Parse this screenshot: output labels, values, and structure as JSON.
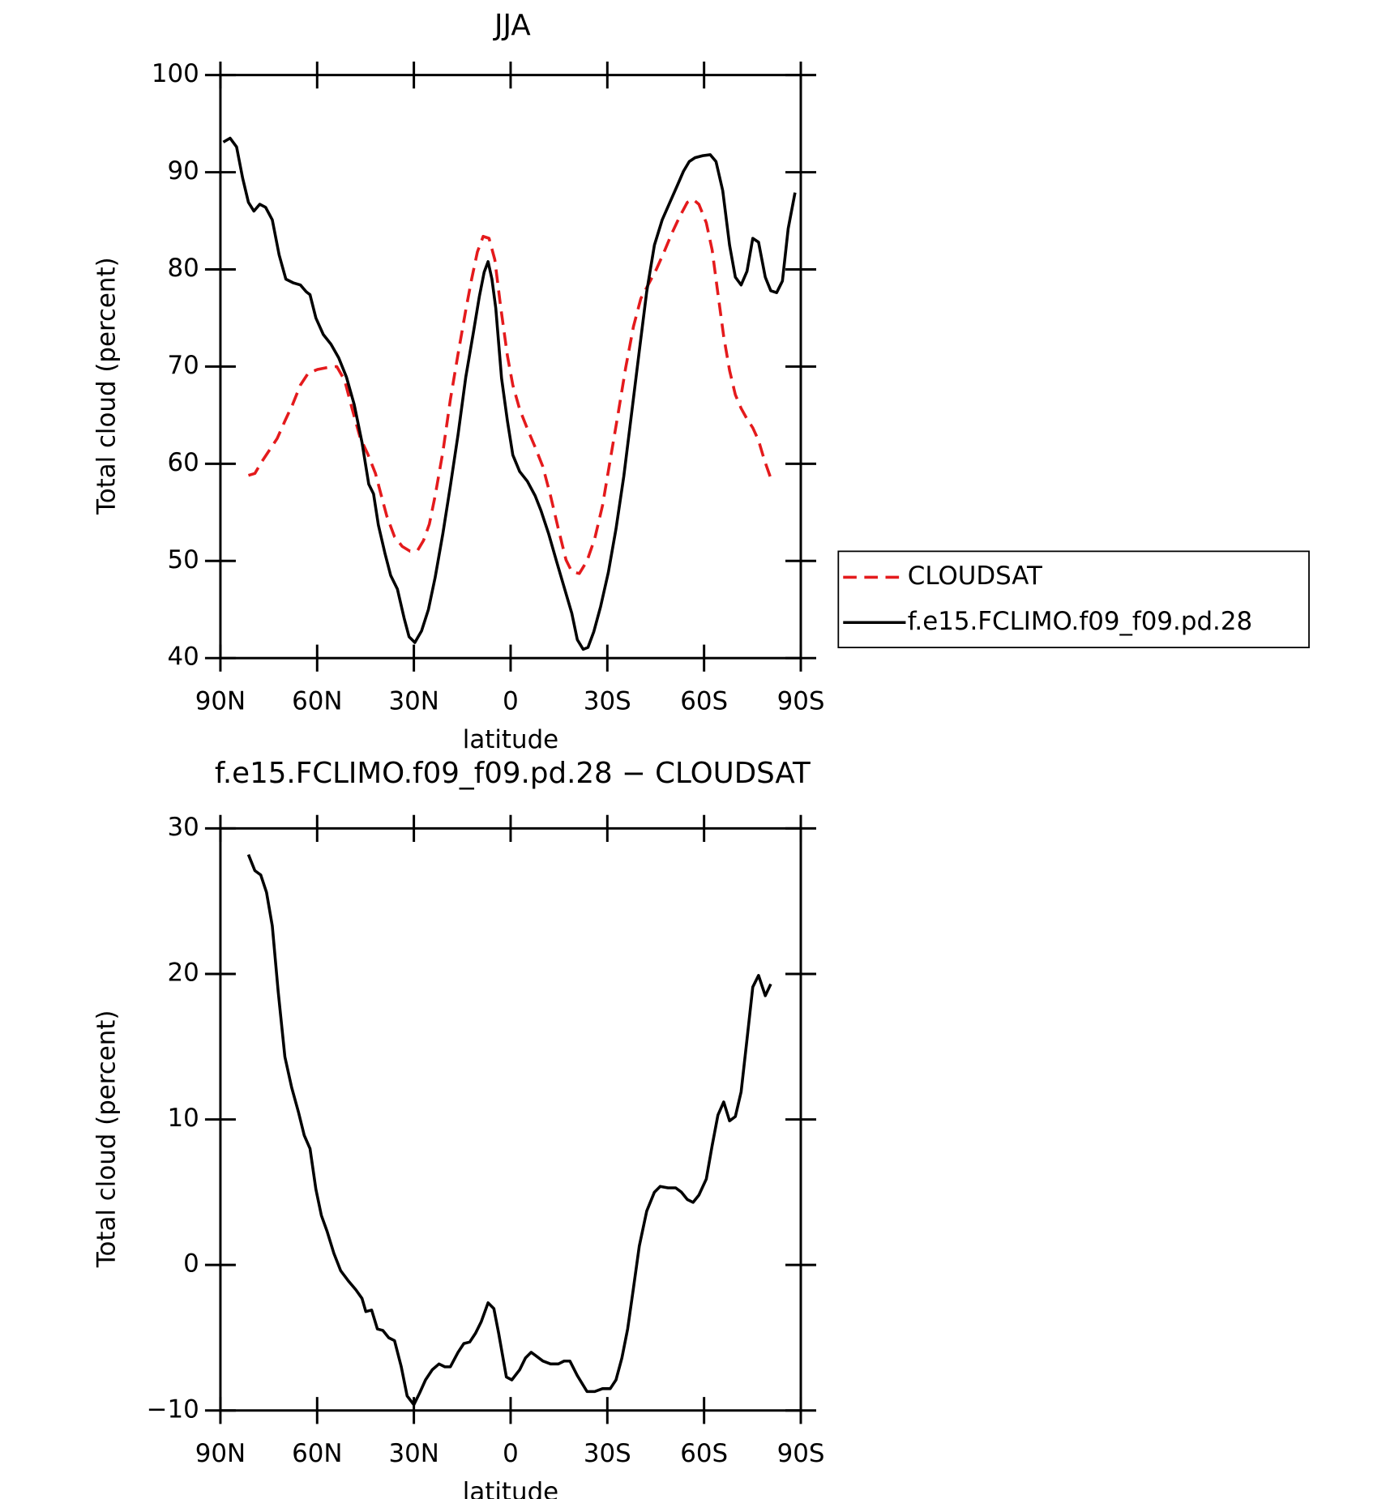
{
  "chart_data": [
    {
      "type": "line",
      "title": "JJA",
      "xlabel": "latitude",
      "ylabel": "Total cloud (percent)",
      "xlim": [
        90,
        -90
      ],
      "ylim": [
        40,
        100
      ],
      "xticks": [
        {
          "value": 90,
          "label": "90N"
        },
        {
          "value": 60,
          "label": "60N"
        },
        {
          "value": 30,
          "label": "30N"
        },
        0,
        {
          "value": -30,
          "label": "30S"
        },
        {
          "value": -60,
          "label": "60S"
        },
        {
          "value": -90,
          "label": "90S"
        }
      ],
      "yticks": [
        40,
        50,
        60,
        70,
        80,
        90,
        100
      ],
      "legend": "right",
      "series": [
        {
          "name": "CLOUDSAT",
          "color": "#e41a1c",
          "line_style": "dashed",
          "x": [
            81.3,
            79.3,
            77.2,
            74.8,
            72.4,
            70,
            67.6,
            65.2,
            62.8,
            59.9,
            56.9,
            53.9,
            51.5,
            49.1,
            46.7,
            44.3,
            41.9,
            40.1,
            38.4,
            36,
            33.6,
            31.2,
            28.8,
            27,
            25.2,
            23.4,
            21,
            18.7,
            16.3,
            13.9,
            12.1,
            10.3,
            8.5,
            6.7,
            4.9,
            3.1,
            1,
            -0.7,
            -2.8,
            -5.2,
            -7.6,
            -10,
            -12.4,
            -14.8,
            -17.2,
            -19,
            -21.3,
            -23.7,
            -26.1,
            -28.5,
            -30.9,
            -33.3,
            -35.7,
            -38.1,
            -40.4,
            -42.8,
            -45.2,
            -47.6,
            -50,
            -52.4,
            -54.8,
            -56.6,
            -58.4,
            -60.7,
            -62.5,
            -64.3,
            -66.1,
            -67.9,
            -69.7,
            -71.5,
            -73.3,
            -75.1,
            -76.9,
            -78.7,
            -80.7
          ],
          "values": [
            58.8,
            59,
            60.2,
            61.4,
            62.6,
            64.4,
            66.1,
            68.1,
            69.3,
            69.7,
            69.9,
            70,
            68.6,
            65.6,
            62.7,
            61,
            59,
            56.7,
            54.6,
            52.5,
            51.5,
            51,
            51.1,
            52.1,
            53.8,
            56.7,
            61.2,
            66.6,
            71.3,
            75.8,
            79,
            81.8,
            83.4,
            83.2,
            81,
            76.2,
            71.1,
            68.1,
            65.6,
            63.6,
            61.7,
            59.7,
            56.7,
            53.3,
            50.1,
            48.9,
            48.7,
            50,
            52.3,
            55.7,
            60.4,
            65.1,
            69.9,
            74.1,
            77,
            78.5,
            80,
            81.8,
            83.7,
            85.4,
            86.9,
            87.2,
            86.7,
            84.8,
            82,
            77.5,
            73.1,
            69.6,
            67.1,
            65.7,
            64.6,
            63.7,
            62.4,
            60.4,
            58.5
          ]
        },
        {
          "name": "f.e15.FCLIMO.f09_f09.pd.28",
          "color": "#000000",
          "line_style": "solid",
          "x": [
            89.1,
            87,
            85,
            83.1,
            81.3,
            79.6,
            77.8,
            76,
            73.9,
            71.8,
            69.7,
            67.3,
            65.2,
            63.4,
            62.2,
            60.4,
            58.1,
            55.7,
            53.3,
            50.9,
            48.5,
            46.1,
            44,
            42.5,
            41,
            39,
            37.2,
            35.1,
            33,
            31.5,
            29.7,
            27.6,
            25.5,
            23.4,
            21,
            18.7,
            16.3,
            13.9,
            11.5,
            9.7,
            8.2,
            7,
            5.8,
            4.6,
            2.8,
            1,
            -0.7,
            -2.8,
            -5.2,
            -7.6,
            -9.4,
            -11.8,
            -14.2,
            -16.6,
            -19,
            -20.7,
            -22.5,
            -24,
            -25.8,
            -27.9,
            -30.3,
            -32.7,
            -35.1,
            -37.5,
            -39.9,
            -42.2,
            -44.6,
            -47,
            -49.4,
            -51.8,
            -53.6,
            -55.4,
            -57.2,
            -59.6,
            -61.9,
            -63.7,
            -65.8,
            -67.9,
            -69.7,
            -71.5,
            -73.3,
            -75.1,
            -76.9,
            -79,
            -80.7,
            -82.5,
            -84.3,
            -86.1,
            -88.2
          ],
          "values": [
            93.1,
            93.5,
            92.6,
            89.4,
            86.9,
            86,
            86.7,
            86.4,
            85.1,
            81.5,
            79,
            78.6,
            78.4,
            77.7,
            77.4,
            75,
            73.3,
            72.3,
            70.9,
            68.9,
            66.1,
            62.2,
            57.9,
            56.9,
            53.7,
            50.8,
            48.5,
            47.1,
            44.1,
            42.2,
            41.6,
            42.8,
            45,
            48.3,
            52.8,
            57.7,
            63,
            68.9,
            73.6,
            77.2,
            79.7,
            80.8,
            79,
            76,
            68.8,
            64.4,
            60.9,
            59.2,
            58.2,
            56.7,
            55.2,
            52.8,
            50,
            47.3,
            44.6,
            41.9,
            40.9,
            41.1,
            42.7,
            45.3,
            48.8,
            53.3,
            58.7,
            65.1,
            71.6,
            77.7,
            82.5,
            85.1,
            86.9,
            88.7,
            90.1,
            91.1,
            91.5,
            91.7,
            91.8,
            91.1,
            88.1,
            82.5,
            79.2,
            78.4,
            79.8,
            83.2,
            82.8,
            79.2,
            77.8,
            77.6,
            78.8,
            84.2,
            87.9
          ]
        }
      ]
    },
    {
      "type": "line",
      "title": "f.e15.FCLIMO.f09_f09.pd.28 − CLOUDSAT",
      "xlabel": "latitude",
      "ylabel": "Total cloud (percent)",
      "xlim": [
        90,
        -90
      ],
      "ylim": [
        -10,
        30
      ],
      "xticks": [
        {
          "value": 90,
          "label": "90N"
        },
        {
          "value": 60,
          "label": "60N"
        },
        {
          "value": 30,
          "label": "30N"
        },
        0,
        {
          "value": -30,
          "label": "30S"
        },
        {
          "value": -60,
          "label": "60S"
        },
        {
          "value": -90,
          "label": "90S"
        }
      ],
      "yticks": [
        {
          "value": -10,
          "label": "−10"
        },
        0,
        10,
        20,
        30
      ],
      "series": [
        {
          "color": "#000000",
          "line_style": "solid",
          "x": [
            81.3,
            79.3,
            77.5,
            75.7,
            73.9,
            72.1,
            70,
            67.9,
            65.8,
            64,
            62.2,
            60.4,
            58.7,
            56.9,
            54.8,
            52.7,
            50.3,
            48,
            46.1,
            44.9,
            43.1,
            41.3,
            39.6,
            37.8,
            36,
            33.9,
            32.1,
            30,
            28.2,
            26.4,
            24.3,
            22.2,
            20.4,
            18.7,
            16.3,
            14.5,
            12.7,
            10.9,
            9.1,
            7,
            5.2,
            3.7,
            1.3,
            -0.4,
            -2.8,
            -4.6,
            -6.4,
            -8.2,
            -10,
            -12.4,
            -14.8,
            -16.6,
            -18.4,
            -20.7,
            -23.7,
            -26.1,
            -28.5,
            -30.9,
            -32.7,
            -34.5,
            -36.3,
            -38.1,
            -39.9,
            -42.2,
            -44.6,
            -46.4,
            -48.8,
            -51.2,
            -53,
            -54.8,
            -56.6,
            -58.4,
            -60.7,
            -62.5,
            -64.3,
            -66.1,
            -67.9,
            -69.7,
            -71.5,
            -73.3,
            -75.1,
            -76.9,
            -79,
            -80.7
          ],
          "values": [
            28.2,
            27.1,
            26.8,
            25.6,
            23.3,
            18.8,
            14.3,
            12.2,
            10.5,
            8.9,
            8,
            5.2,
            3.4,
            2.3,
            0.8,
            -0.4,
            -1.1,
            -1.7,
            -2.3,
            -3.2,
            -3.1,
            -4.4,
            -4.5,
            -5,
            -5.2,
            -7,
            -9,
            -9.6,
            -8.8,
            -7.9,
            -7.2,
            -6.8,
            -7,
            -7,
            -6,
            -5.4,
            -5.3,
            -4.7,
            -3.9,
            -2.6,
            -3,
            -4.7,
            -7.7,
            -7.9,
            -7.2,
            -6.4,
            -6,
            -6.3,
            -6.6,
            -6.8,
            -6.8,
            -6.6,
            -6.6,
            -7.6,
            -8.7,
            -8.7,
            -8.5,
            -8.5,
            -7.9,
            -6.4,
            -4.4,
            -1.6,
            1.3,
            3.7,
            5,
            5.4,
            5.3,
            5.3,
            5,
            4.5,
            4.3,
            4.8,
            5.9,
            8.2,
            10.3,
            11.2,
            9.9,
            10.2,
            11.9,
            15.5,
            19.1,
            19.9,
            18.5,
            19.3
          ]
        }
      ]
    }
  ]
}
